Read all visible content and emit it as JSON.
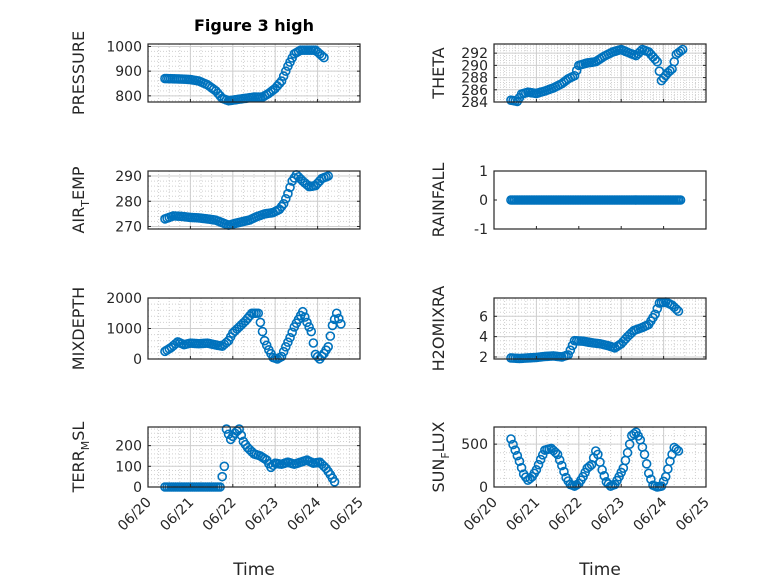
{
  "colors": {
    "marker": "#0072BD",
    "axis": "#262626",
    "grid": "#d0d0d0"
  },
  "chart_data": [
    {
      "type": "scatter",
      "title": "Figure 3 high",
      "ylabel": "PRESSURE",
      "xlabel": "",
      "xlim": [
        0,
        5
      ],
      "ylim": [
        775,
        1010
      ],
      "yticks": [
        800,
        900,
        1000
      ],
      "ytick_labels": [
        "800",
        "900",
        "1000"
      ],
      "xtick_labels": [],
      "grid": true,
      "points": [
        [
          0.4,
          870
        ],
        [
          0.8,
          868
        ],
        [
          1.0,
          866
        ],
        [
          1.2,
          860
        ],
        [
          1.4,
          845
        ],
        [
          1.6,
          820
        ],
        [
          1.75,
          790
        ],
        [
          1.9,
          780
        ],
        [
          2.1,
          785
        ],
        [
          2.3,
          790
        ],
        [
          2.5,
          795
        ],
        [
          2.7,
          795
        ],
        [
          2.85,
          810
        ],
        [
          3.0,
          830
        ],
        [
          3.15,
          860
        ],
        [
          3.3,
          920
        ],
        [
          3.45,
          970
        ],
        [
          3.6,
          985
        ],
        [
          3.8,
          985
        ],
        [
          3.95,
          985
        ],
        [
          4.05,
          970
        ],
        [
          4.15,
          955
        ]
      ]
    },
    {
      "type": "scatter",
      "title": "",
      "ylabel": "THETA",
      "xlabel": "",
      "xlim": [
        0,
        5
      ],
      "ylim": [
        284,
        293.5
      ],
      "yticks": [
        284,
        286,
        288,
        290,
        292
      ],
      "ytick_labels": [
        "284",
        "286",
        "288",
        "290",
        "292"
      ],
      "xtick_labels": [],
      "grid": true,
      "points": [
        [
          0.4,
          284.3
        ],
        [
          0.55,
          284.1
        ],
        [
          0.65,
          285.3
        ],
        [
          0.8,
          285.6
        ],
        [
          1.0,
          285.4
        ],
        [
          1.2,
          285.8
        ],
        [
          1.4,
          286.3
        ],
        [
          1.6,
          287.0
        ],
        [
          1.75,
          287.8
        ],
        [
          1.9,
          288.3
        ],
        [
          2.0,
          290.0
        ],
        [
          2.2,
          290.4
        ],
        [
          2.4,
          290.6
        ],
        [
          2.6,
          291.5
        ],
        [
          2.8,
          292.2
        ],
        [
          3.0,
          292.6
        ],
        [
          3.2,
          292.0
        ],
        [
          3.35,
          291.6
        ],
        [
          3.5,
          292.6
        ],
        [
          3.65,
          292.2
        ],
        [
          3.75,
          291.4
        ],
        [
          3.85,
          290.6
        ],
        [
          3.95,
          287.5
        ],
        [
          4.1,
          288.8
        ],
        [
          4.2,
          289.4
        ],
        [
          4.3,
          291.8
        ],
        [
          4.45,
          292.6
        ]
      ]
    },
    {
      "type": "scatter",
      "title": "",
      "ylabel": "AIR_TEMP",
      "ylabel_main": "AIR",
      "ylabel_sub": "T",
      "ylabel_rest": "EMP",
      "xlabel": "",
      "xlim": [
        0,
        5
      ],
      "ylim": [
        269,
        292
      ],
      "yticks": [
        270,
        280,
        290
      ],
      "ytick_labels": [
        "270",
        "280",
        "290"
      ],
      "xtick_labels": [],
      "grid": true,
      "points": [
        [
          0.4,
          273
        ],
        [
          0.6,
          274.2
        ],
        [
          0.8,
          274
        ],
        [
          1.0,
          273.6
        ],
        [
          1.2,
          273.4
        ],
        [
          1.4,
          273
        ],
        [
          1.6,
          272.5
        ],
        [
          1.75,
          271.5
        ],
        [
          1.9,
          270.5
        ],
        [
          2.05,
          271.2
        ],
        [
          2.2,
          271.8
        ],
        [
          2.4,
          272.6
        ],
        [
          2.55,
          273.8
        ],
        [
          2.75,
          275
        ],
        [
          2.95,
          275.5
        ],
        [
          3.1,
          276.8
        ],
        [
          3.2,
          279
        ],
        [
          3.3,
          283
        ],
        [
          3.4,
          288
        ],
        [
          3.5,
          290.5
        ],
        [
          3.65,
          288
        ],
        [
          3.8,
          285.8
        ],
        [
          3.95,
          286.2
        ],
        [
          4.1,
          289
        ],
        [
          4.25,
          290
        ]
      ]
    },
    {
      "type": "scatter",
      "title": "",
      "ylabel": "RAINFALL",
      "xlabel": "",
      "xlim": [
        0,
        5
      ],
      "ylim": [
        -1,
        1
      ],
      "yticks": [
        -1,
        0,
        1
      ],
      "ytick_labels": [
        "-1",
        "0",
        "1"
      ],
      "xtick_labels": [],
      "grid": false,
      "points": [
        [
          0.4,
          0
        ],
        [
          4.4,
          0
        ]
      ],
      "dense_range": [
        0.4,
        4.4,
        0
      ]
    },
    {
      "type": "scatter",
      "title": "",
      "ylabel": "MIXDEPTH",
      "xlabel": "",
      "xlim": [
        0,
        5
      ],
      "ylim": [
        0,
        2000
      ],
      "yticks": [
        0,
        1000,
        2000
      ],
      "ytick_labels": [
        "0",
        "1000",
        "2000"
      ],
      "xtick_labels": [],
      "grid": true,
      "points": [
        [
          0.4,
          250
        ],
        [
          0.55,
          380
        ],
        [
          0.7,
          560
        ],
        [
          0.85,
          470
        ],
        [
          1.0,
          520
        ],
        [
          1.2,
          500
        ],
        [
          1.4,
          520
        ],
        [
          1.6,
          460
        ],
        [
          1.75,
          420
        ],
        [
          1.9,
          600
        ],
        [
          2.0,
          850
        ],
        [
          2.15,
          1050
        ],
        [
          2.3,
          1250
        ],
        [
          2.45,
          1500
        ],
        [
          2.6,
          1500
        ],
        [
          2.75,
          600
        ],
        [
          2.85,
          300
        ],
        [
          2.95,
          50
        ],
        [
          3.05,
          0
        ],
        [
          3.15,
          80
        ],
        [
          3.25,
          400
        ],
        [
          3.35,
          700
        ],
        [
          3.45,
          1050
        ],
        [
          3.55,
          1300
        ],
        [
          3.65,
          1550
        ],
        [
          3.75,
          1200
        ],
        [
          3.85,
          900
        ],
        [
          3.95,
          150
        ],
        [
          4.05,
          0
        ],
        [
          4.15,
          180
        ],
        [
          4.25,
          400
        ],
        [
          4.35,
          1100
        ],
        [
          4.45,
          1500
        ],
        [
          4.55,
          1150
        ]
      ]
    },
    {
      "type": "scatter",
      "title": "",
      "ylabel": "H2OMIXRA",
      "xlabel": "",
      "xlim": [
        0,
        5
      ],
      "ylim": [
        1.8,
        7.8
      ],
      "yticks": [
        2,
        4,
        6
      ],
      "ytick_labels": [
        "2",
        "4",
        "6"
      ],
      "xtick_labels": [],
      "grid": true,
      "points": [
        [
          0.4,
          1.9
        ],
        [
          0.6,
          1.85
        ],
        [
          0.8,
          1.9
        ],
        [
          1.0,
          1.95
        ],
        [
          1.2,
          2.05
        ],
        [
          1.4,
          2.1
        ],
        [
          1.6,
          2.0
        ],
        [
          1.75,
          2.2
        ],
        [
          1.9,
          3.6
        ],
        [
          2.1,
          3.55
        ],
        [
          2.3,
          3.4
        ],
        [
          2.5,
          3.3
        ],
        [
          2.7,
          3.1
        ],
        [
          2.85,
          2.9
        ],
        [
          3.0,
          3.3
        ],
        [
          3.15,
          4.0
        ],
        [
          3.3,
          4.6
        ],
        [
          3.5,
          4.9
        ],
        [
          3.65,
          5.2
        ],
        [
          3.8,
          6.2
        ],
        [
          3.9,
          7.3
        ],
        [
          4.05,
          7.4
        ],
        [
          4.2,
          7.1
        ],
        [
          4.35,
          6.5
        ]
      ]
    },
    {
      "type": "scatter",
      "title": "",
      "ylabel": "TERR_MSL",
      "ylabel_main": "TERR",
      "ylabel_sub": "M",
      "ylabel_rest": "SL",
      "xlabel": "Time",
      "xlim": [
        0,
        5
      ],
      "ylim": [
        0,
        290
      ],
      "yticks": [
        0,
        100,
        200
      ],
      "ytick_labels": [
        "0",
        "100",
        "200"
      ],
      "xticks": [
        0,
        1,
        2,
        3,
        4,
        5
      ],
      "xtick_labels": [
        "06/20",
        "06/21",
        "06/22",
        "06/23",
        "06/24",
        "06/25"
      ],
      "grid": true,
      "points": [
        [
          0.4,
          0
        ],
        [
          0.6,
          0
        ],
        [
          0.8,
          0
        ],
        [
          1.0,
          0
        ],
        [
          1.2,
          0
        ],
        [
          1.4,
          0
        ],
        [
          1.6,
          0
        ],
        [
          1.7,
          0
        ],
        [
          1.8,
          100
        ],
        [
          1.85,
          280
        ],
        [
          1.95,
          230
        ],
        [
          2.05,
          260
        ],
        [
          2.15,
          280
        ],
        [
          2.25,
          220
        ],
        [
          2.35,
          190
        ],
        [
          2.5,
          160
        ],
        [
          2.65,
          150
        ],
        [
          2.8,
          130
        ],
        [
          2.9,
          95
        ],
        [
          3.0,
          115
        ],
        [
          3.15,
          110
        ],
        [
          3.3,
          120
        ],
        [
          3.45,
          110
        ],
        [
          3.6,
          120
        ],
        [
          3.75,
          130
        ],
        [
          3.9,
          115
        ],
        [
          4.05,
          120
        ],
        [
          4.2,
          90
        ],
        [
          4.3,
          60
        ],
        [
          4.4,
          25
        ]
      ]
    },
    {
      "type": "scatter",
      "title": "",
      "ylabel": "SUN_FLUX",
      "ylabel_main": "SUN",
      "ylabel_sub": "F",
      "ylabel_rest": "LUX",
      "xlabel": "Time",
      "xlim": [
        0,
        5
      ],
      "ylim": [
        0,
        700
      ],
      "yticks": [
        0,
        500
      ],
      "ytick_labels": [
        "0",
        "500"
      ],
      "xticks": [
        0,
        1,
        2,
        3,
        4,
        5
      ],
      "xtick_labels": [
        "06/20",
        "06/21",
        "06/22",
        "06/23",
        "06/24",
        "06/25"
      ],
      "grid": true,
      "points": [
        [
          0.4,
          560
        ],
        [
          0.5,
          430
        ],
        [
          0.6,
          300
        ],
        [
          0.7,
          150
        ],
        [
          0.8,
          80
        ],
        [
          0.9,
          120
        ],
        [
          1.0,
          200
        ],
        [
          1.1,
          320
        ],
        [
          1.2,
          430
        ],
        [
          1.35,
          450
        ],
        [
          1.5,
          380
        ],
        [
          1.6,
          250
        ],
        [
          1.7,
          110
        ],
        [
          1.8,
          30
        ],
        [
          1.9,
          10
        ],
        [
          2.0,
          40
        ],
        [
          2.1,
          120
        ],
        [
          2.2,
          220
        ],
        [
          2.3,
          260
        ],
        [
          2.4,
          420
        ],
        [
          2.45,
          380
        ],
        [
          2.55,
          200
        ],
        [
          2.65,
          60
        ],
        [
          2.75,
          10
        ],
        [
          2.85,
          30
        ],
        [
          2.95,
          120
        ],
        [
          3.05,
          220
        ],
        [
          3.15,
          400
        ],
        [
          3.25,
          600
        ],
        [
          3.35,
          640
        ],
        [
          3.45,
          550
        ],
        [
          3.55,
          380
        ],
        [
          3.65,
          160
        ],
        [
          3.75,
          20
        ],
        [
          3.85,
          0
        ],
        [
          3.95,
          10
        ],
        [
          4.05,
          120
        ],
        [
          4.15,
          300
        ],
        [
          4.25,
          460
        ],
        [
          4.35,
          420
        ]
      ]
    }
  ]
}
